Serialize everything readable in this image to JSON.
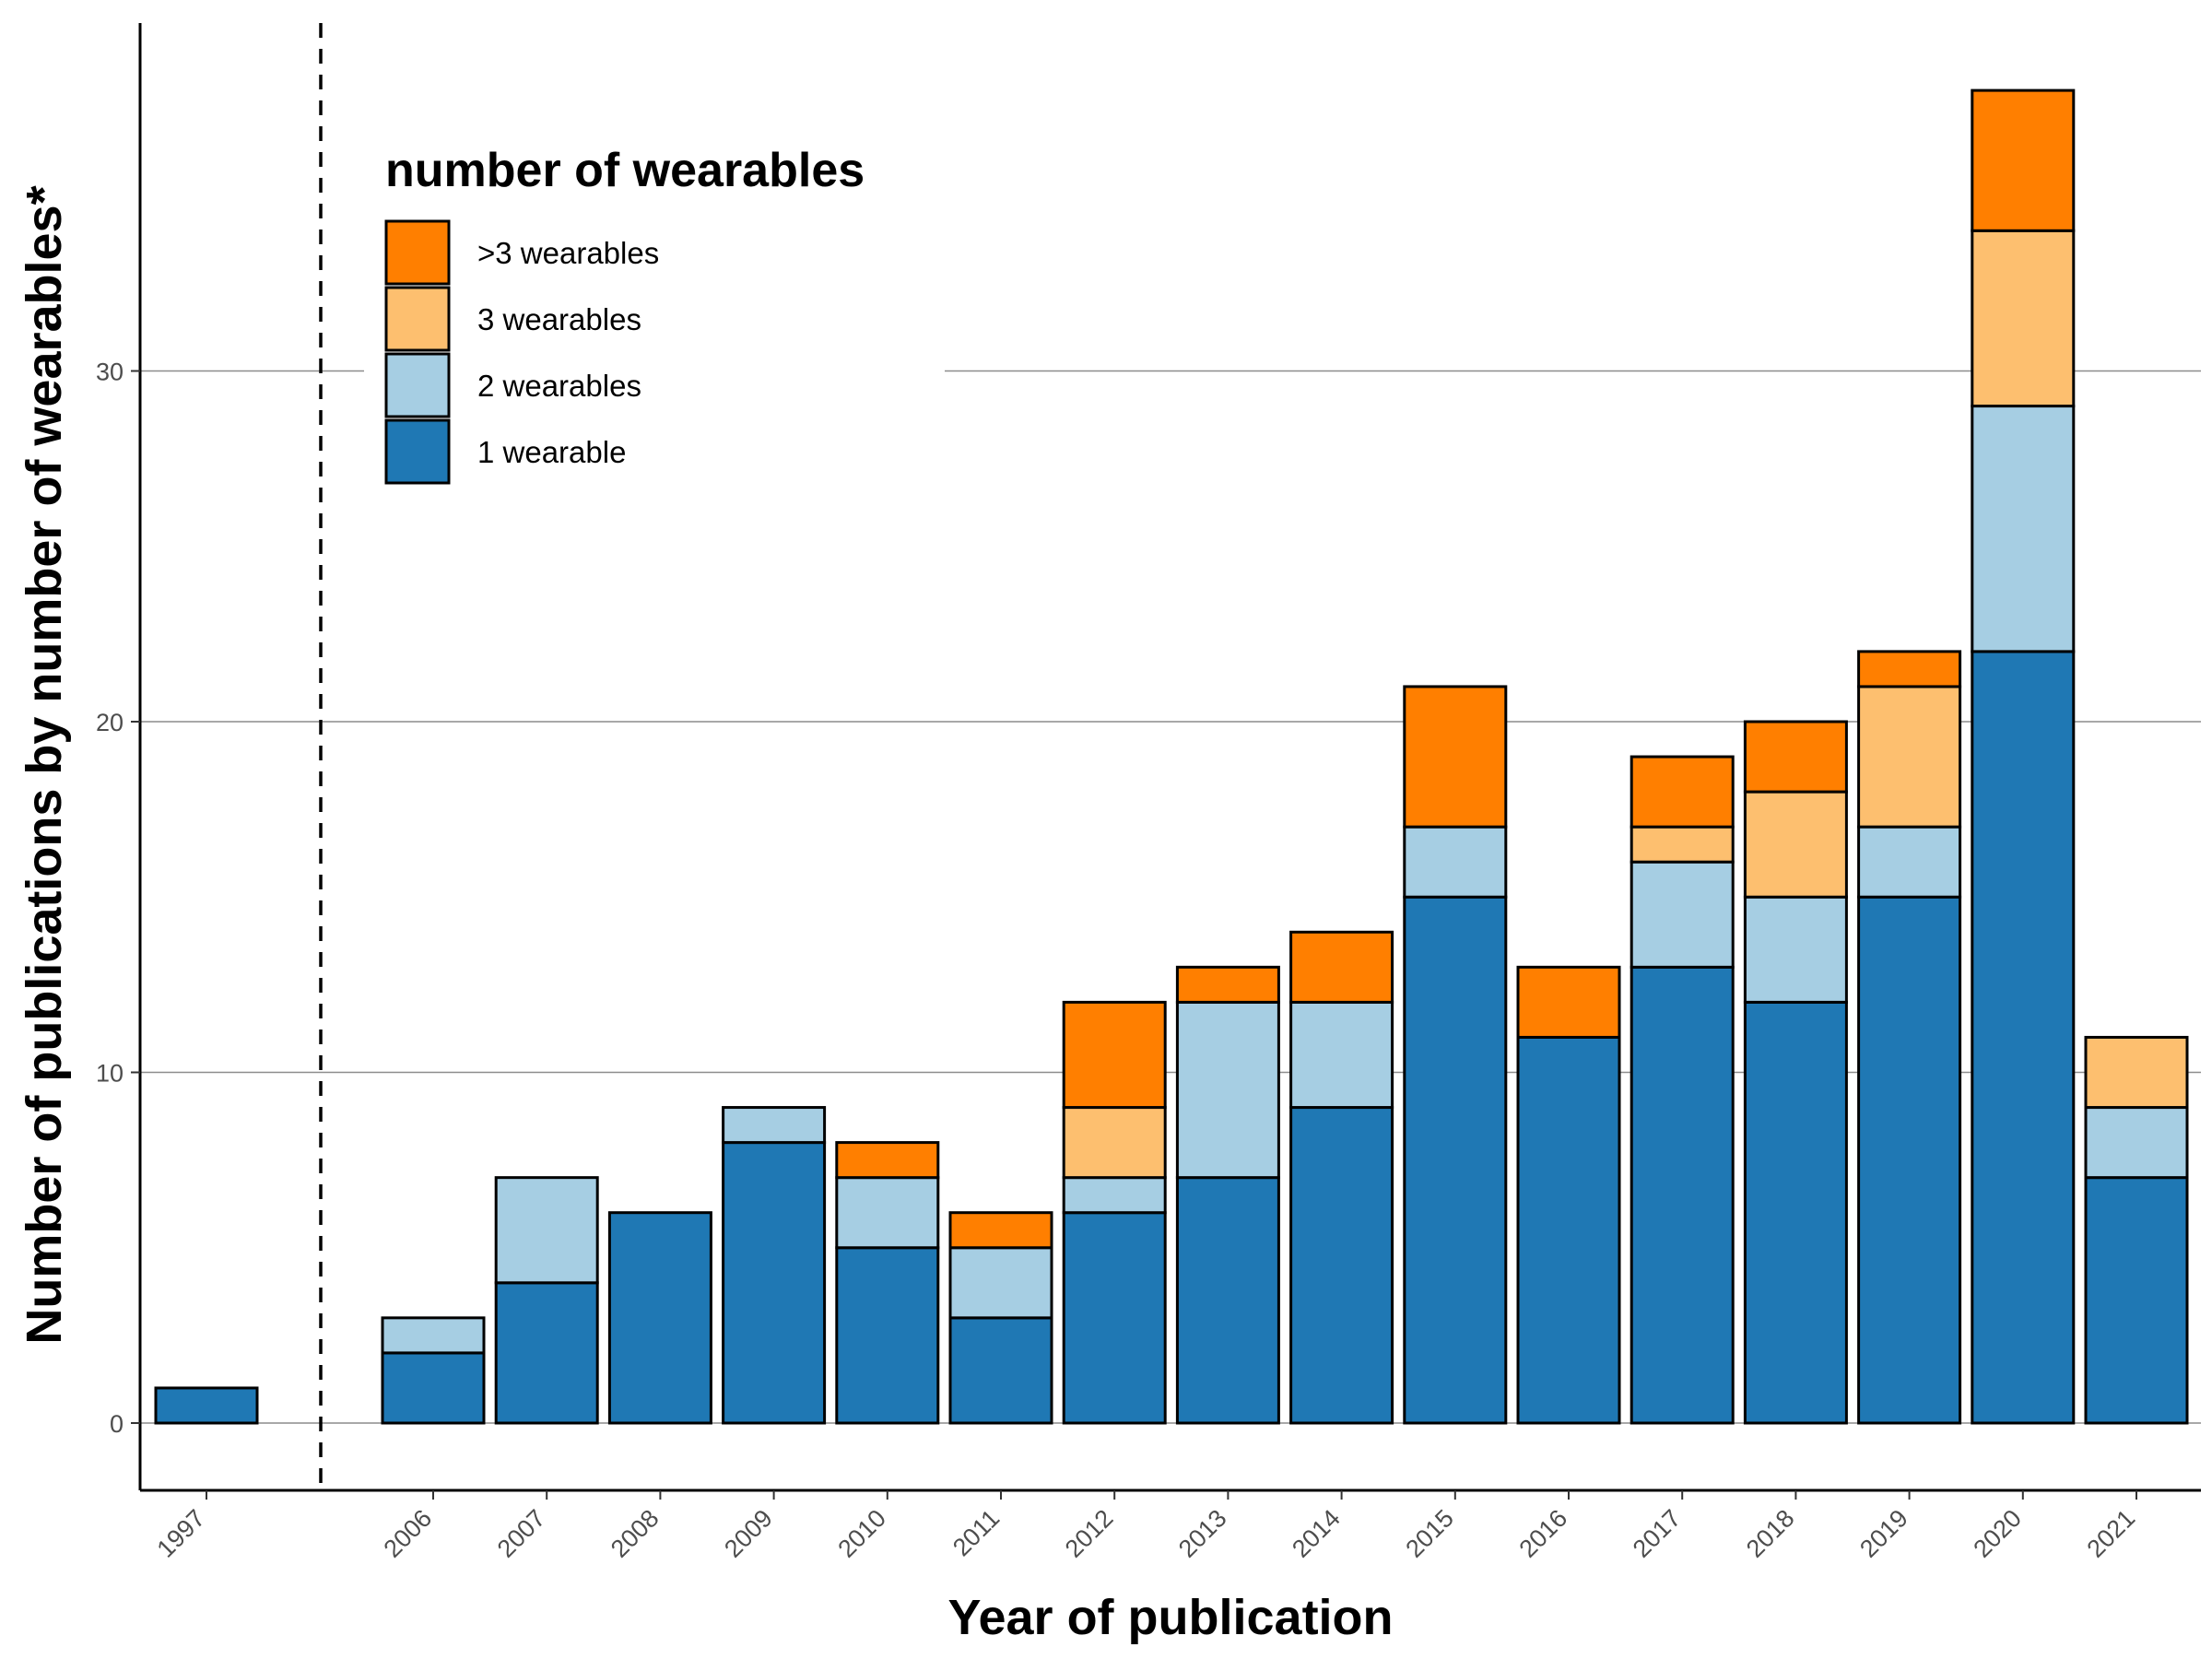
{
  "chart_data": {
    "type": "bar",
    "stacked": true,
    "title": "",
    "xlabel": "Year of publication",
    "ylabel": "Number of publications by number of wearables*",
    "ylim": [
      0,
      38
    ],
    "yticks": [
      0,
      10,
      20,
      30
    ],
    "categories": [
      "1997",
      "2006",
      "2007",
      "2008",
      "2009",
      "2010",
      "2011",
      "2012",
      "2013",
      "2014",
      "2015",
      "2016",
      "2017",
      "2018",
      "2019",
      "2020",
      "2021"
    ],
    "series": [
      {
        "name": "1 wearable",
        "color": "#1f78b4",
        "values": [
          1,
          2,
          4,
          6,
          8,
          5,
          3,
          6,
          7,
          9,
          15,
          11,
          13,
          12,
          15,
          22,
          7
        ]
      },
      {
        "name": "2 wearables",
        "color": "#a6cee3",
        "values": [
          0,
          1,
          3,
          0,
          1,
          2,
          2,
          1,
          5,
          3,
          2,
          0,
          3,
          3,
          2,
          7,
          2
        ]
      },
      {
        "name": "3 wearables",
        "color": "#fdbf6f",
        "values": [
          0,
          0,
          0,
          0,
          0,
          0,
          0,
          2,
          0,
          0,
          0,
          0,
          1,
          3,
          4,
          5,
          2
        ]
      },
      {
        "name": ">3 wearables",
        "color": "#ff7f00",
        "values": [
          0,
          0,
          0,
          0,
          0,
          1,
          1,
          3,
          1,
          2,
          4,
          2,
          2,
          2,
          1,
          4,
          0
        ]
      }
    ],
    "legend": {
      "title": "number of wearables",
      "position": "top-left",
      "order": [
        ">3 wearables",
        "3 wearables",
        "2 wearables",
        "1 wearable"
      ]
    },
    "annotations": [
      "dashed vertical line separating 1997 from 2006"
    ],
    "grid": "horizontal major"
  }
}
